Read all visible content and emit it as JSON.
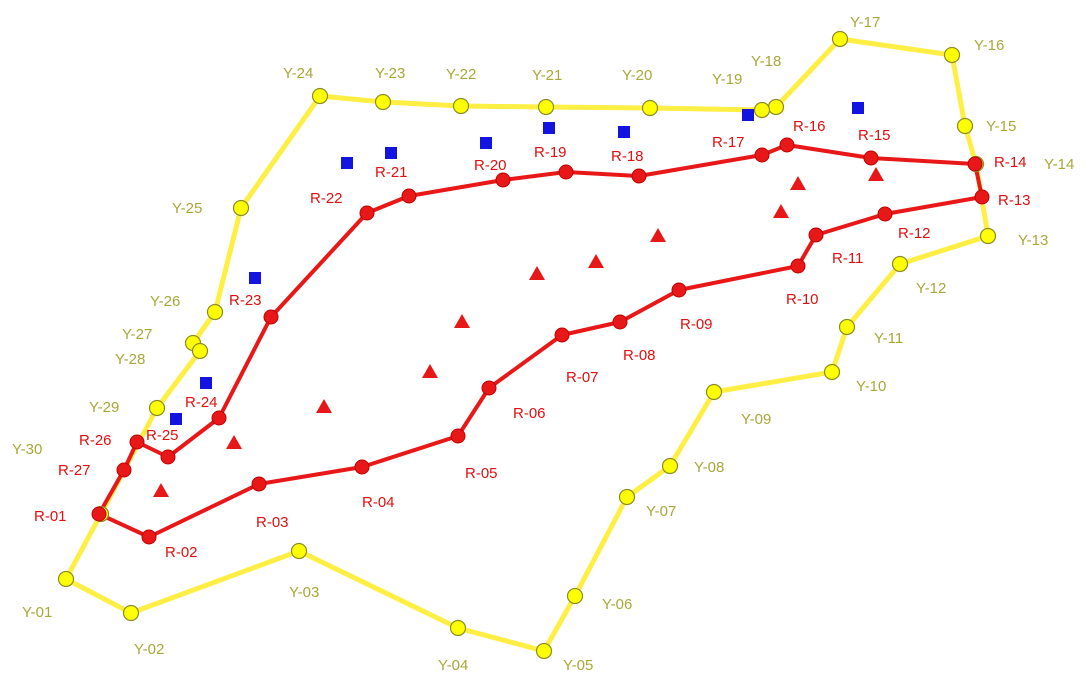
{
  "colors": {
    "yellow_boundary": "#ffee44",
    "yellow_point": "#ffff00",
    "yellow_label": "#a8a83a",
    "red_boundary": "#e81818",
    "red_label": "#e01010",
    "blue_marker": "#1414e0",
    "red_marker": "#e81818"
  },
  "yellow_labels": [
    "Y-01",
    "Y-02",
    "Y-03",
    "Y-04",
    "Y-05",
    "Y-06",
    "Y-07",
    "Y-08",
    "Y-09",
    "Y-10",
    "Y-11",
    "Y-12",
    "Y-13",
    "Y-14",
    "Y-15",
    "Y-16",
    "Y-17",
    "Y-18",
    "Y-19",
    "Y-20",
    "Y-21",
    "Y-22",
    "Y-23",
    "Y-24",
    "Y-25",
    "Y-26",
    "Y-27",
    "Y-28",
    "Y-29",
    "Y-30"
  ],
  "red_labels": [
    "R-01",
    "R-02",
    "R-03",
    "R-04",
    "R-05",
    "R-06",
    "R-07",
    "R-08",
    "R-09",
    "R-10",
    "R-11",
    "R-12",
    "R-13",
    "R-14",
    "R-15",
    "R-16",
    "R-17",
    "R-18",
    "R-19",
    "R-20",
    "R-21",
    "R-22",
    "R-23",
    "R-24",
    "R-25",
    "R-26",
    "R-27"
  ],
  "markers": {
    "blue_square_icon": "square-marker-icon",
    "red_triangle_icon": "triangle-marker-icon"
  }
}
